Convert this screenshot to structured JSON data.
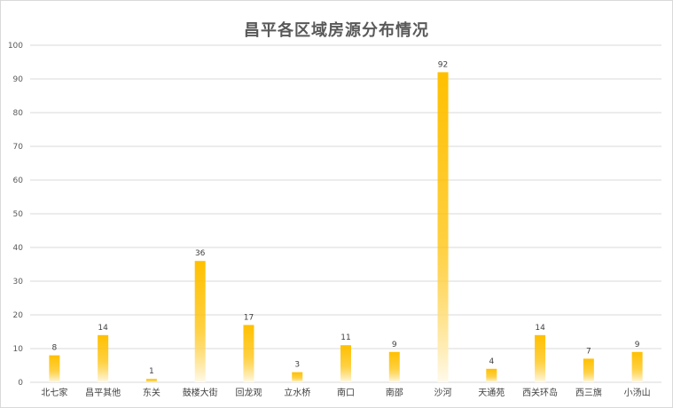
{
  "chart_data": {
    "type": "bar",
    "title": "昌平各区域房源分布情况",
    "xlabel": "",
    "ylabel": "",
    "categories": [
      "北七家",
      "昌平其他",
      "东关",
      "鼓楼大街",
      "回龙观",
      "立水桥",
      "南口",
      "南邵",
      "沙河",
      "天通苑",
      "西关环岛",
      "西三旗",
      "小汤山"
    ],
    "values": [
      8,
      14,
      1,
      36,
      17,
      3,
      11,
      9,
      92,
      4,
      14,
      7,
      9
    ],
    "ylim": [
      0,
      100
    ],
    "yticks": [
      "0",
      "10",
      "20",
      "30",
      "40",
      "50",
      "60",
      "70",
      "80",
      "90",
      "100"
    ],
    "grid": true,
    "legend": "none",
    "data_labels": true,
    "colors": {
      "bar_top": "#ffc000",
      "bar_bottom": "#fffaeb",
      "grid": "#d9d9d9",
      "text": "#595959"
    }
  }
}
